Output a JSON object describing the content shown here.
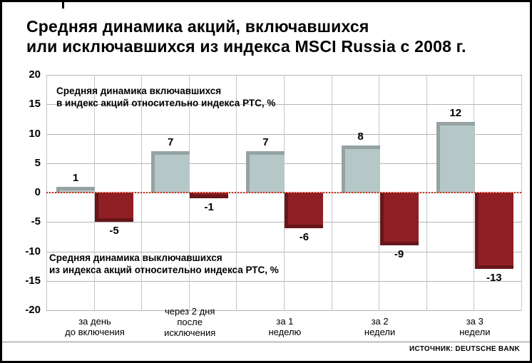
{
  "title": {
    "line1": "Средняя динамика акций, включавшихся",
    "line2": "или исключавшихся из индекса MSCI Russia с 2008 г."
  },
  "chart_data": {
    "type": "bar",
    "categories": [
      [
        "за день",
        "до включения"
      ],
      [
        "через 2 дня",
        "после",
        "исключения"
      ],
      [
        "за 1",
        "неделю"
      ],
      [
        "за 2",
        "недели"
      ],
      [
        "за 3",
        "недели"
      ]
    ],
    "series": [
      {
        "name": "включавшиеся в индекс",
        "color": "#b5c7c6",
        "values": [
          1,
          7,
          7,
          8,
          12
        ]
      },
      {
        "name": "выключавшиеся из индекса",
        "color": "#8f1f24",
        "values": [
          -5,
          -1,
          -6,
          -9,
          -13
        ]
      }
    ],
    "ylim": [
      -20,
      20
    ],
    "yticks": [
      20,
      15,
      10,
      5,
      0,
      -5,
      -10,
      -15,
      -20
    ],
    "grid": "on",
    "zero_line_color": "#cf3118",
    "annotations": [
      {
        "lines": [
          "Средняя динамика включавшихся",
          "в индекс акций относительно индекса РТС, %"
        ]
      },
      {
        "lines": [
          "Средняя динамика выключавшихся",
          "из индекса акций относительно индекса РТС, %"
        ]
      }
    ],
    "source": "ИСТОЧНИК: DEUTSCHE BANK"
  }
}
